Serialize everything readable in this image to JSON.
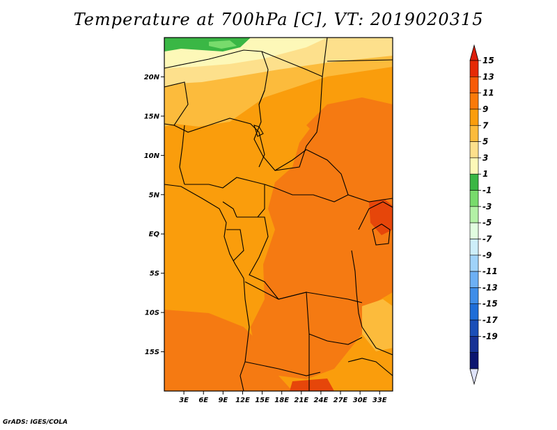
{
  "title": "Temperature at 700hPa [C], VT: 2019020315",
  "credit": "GrADS: IGES/COLA",
  "map": {
    "lat_ticks": [
      {
        "label": "20N",
        "lat": 20
      },
      {
        "label": "15N",
        "lat": 15
      },
      {
        "label": "10N",
        "lat": 10
      },
      {
        "label": "5N",
        "lat": 5
      },
      {
        "label": "EQ",
        "lat": 0
      },
      {
        "label": "5S",
        "lat": -5
      },
      {
        "label": "10S",
        "lat": -10
      },
      {
        "label": "15S",
        "lat": -15
      }
    ],
    "lon_ticks": [
      {
        "label": "3E",
        "lon": 3
      },
      {
        "label": "6E",
        "lon": 6
      },
      {
        "label": "9E",
        "lon": 9
      },
      {
        "label": "12E",
        "lon": 12
      },
      {
        "label": "15E",
        "lon": 15
      },
      {
        "label": "18E",
        "lon": 18
      },
      {
        "label": "21E",
        "lon": 21
      },
      {
        "label": "24E",
        "lon": 24
      },
      {
        "label": "27E",
        "lon": 27
      },
      {
        "label": "30E",
        "lon": 30
      },
      {
        "label": "33E",
        "lon": 33
      }
    ],
    "lon_range": [
      0,
      35
    ],
    "lat_range": [
      -20,
      25
    ]
  },
  "colorbar": {
    "labels": [
      "15",
      "13",
      "11",
      "9",
      "7",
      "5",
      "3",
      "1",
      "-1",
      "-3",
      "-5",
      "-7",
      "-9",
      "-11",
      "-13",
      "-15",
      "-17",
      "-19"
    ],
    "colors": [
      "#e62a06",
      "#f75b08",
      "#fa7a0a",
      "#fa9d0c",
      "#fcbb3c",
      "#fde08c",
      "#fdf8b8",
      "#3ab745",
      "#78db6c",
      "#b3f1a6",
      "#e1fde0",
      "#cdeef9",
      "#a0d3f9",
      "#6db0f4",
      "#3f8ee9",
      "#1f6ed8",
      "#1b4fb8",
      "#173296",
      "#0b1570"
    ],
    "over_color": "#dd1f0c",
    "under_color": "#dfe3fa"
  }
}
